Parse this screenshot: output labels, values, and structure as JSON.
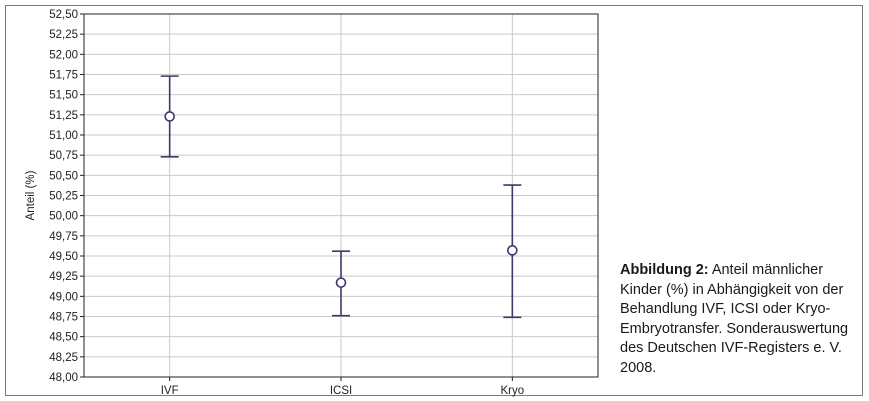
{
  "chart_data": {
    "type": "scatter",
    "ylabel": "Anteil (%)",
    "xlabel": "",
    "categories": [
      "IVF",
      "ICSI",
      "Kryo"
    ],
    "series": [
      {
        "points": [
          {
            "x": "IVF",
            "mean": 51.23,
            "lower": 50.73,
            "upper": 51.73
          },
          {
            "x": "ICSI",
            "mean": 49.17,
            "lower": 48.76,
            "upper": 49.56
          },
          {
            "x": "Kryo",
            "mean": 49.57,
            "lower": 48.74,
            "upper": 50.38
          }
        ]
      }
    ],
    "ylim": [
      48.0,
      52.5
    ],
    "ytick_step": 0.25,
    "ytick_labels": [
      "48,00",
      "48,25",
      "48,50",
      "48,75",
      "49,00",
      "49,25",
      "49,50",
      "49,75",
      "50,00",
      "50,25",
      "50,50",
      "50,75",
      "51,00",
      "51,25",
      "51,50",
      "51,75",
      "52,00",
      "52,25",
      "52,50"
    ],
    "grid": true,
    "marker_color": "#3b3a6b",
    "grid_color": "#c9c9c9"
  },
  "caption": {
    "heading": "Abbildung 2:",
    "text": " Anteil männlicher Kinder (%) in Abhängigkeit von der Behandlung IVF, ICSI oder Kryo-Embryotransfer. Sonderauswertung des Deutschen IVF-Registers e. V. 2008."
  }
}
